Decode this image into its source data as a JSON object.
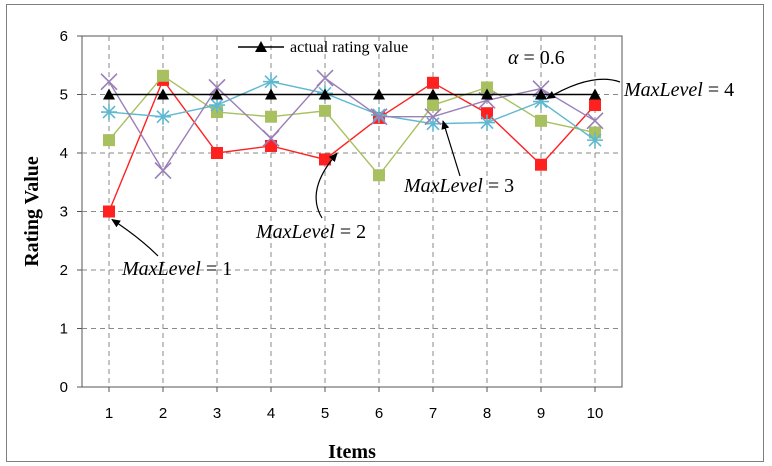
{
  "chart_data": {
    "type": "line",
    "xlabel": "Items",
    "ylabel": "Rating Value",
    "ylim": [
      0,
      6
    ],
    "yticks": [
      "0",
      "1",
      "2",
      "3",
      "4",
      "5",
      "6"
    ],
    "categories": [
      "1",
      "2",
      "3",
      "4",
      "5",
      "6",
      "7",
      "8",
      "9",
      "10"
    ],
    "grid": true,
    "legend": {
      "position": "top",
      "label": "actual rating value"
    },
    "series": [
      {
        "name": "actual rating value",
        "color": "#000000",
        "marker": "triangle",
        "values": [
          5,
          5,
          5,
          5,
          5,
          5,
          5,
          5,
          5,
          5
        ]
      },
      {
        "color": "#ff2020",
        "marker": "square",
        "values": [
          3.0,
          5.25,
          4.0,
          4.12,
          3.89,
          4.6,
          5.2,
          4.68,
          3.8,
          4.82
        ]
      },
      {
        "color": "#a8c060",
        "marker": "square",
        "values": [
          4.22,
          5.32,
          4.7,
          4.62,
          4.72,
          3.62,
          4.82,
          5.12,
          4.55,
          4.35
        ]
      },
      {
        "color": "#5fb8d0",
        "marker": "star",
        "values": [
          4.7,
          4.62,
          4.82,
          5.22,
          5.02,
          4.65,
          4.5,
          4.52,
          4.88,
          4.22
        ]
      },
      {
        "color": "#9b7fb8",
        "marker": "cross",
        "values": [
          5.22,
          3.7,
          5.12,
          4.25,
          5.28,
          4.62,
          4.62,
          4.9,
          5.1,
          4.55
        ]
      }
    ],
    "annotations": [
      {
        "prefix": "MaxLevel",
        "value": " = 1",
        "target": [
          1,
          3.0
        ]
      },
      {
        "prefix": "MaxLevel",
        "value": " = 2",
        "target": [
          5,
          3.89
        ]
      },
      {
        "prefix": "MaxLevel",
        "value": " = 3",
        "target": [
          7,
          4.82
        ]
      },
      {
        "prefix": "MaxLevel",
        "value": " = 4",
        "target": [
          9,
          5.0
        ]
      },
      {
        "prefix": "α",
        "value": " = 0.6"
      }
    ]
  }
}
